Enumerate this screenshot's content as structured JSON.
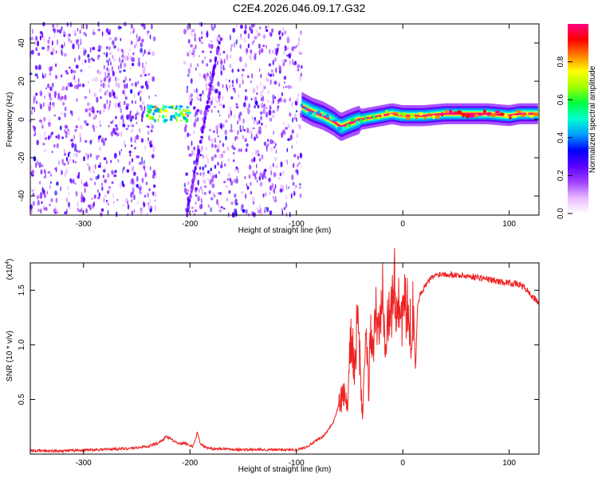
{
  "title": "C2E4.2026.046.09.17.G32",
  "chart_data": [
    {
      "type": "heatmap",
      "name": "spectrogram",
      "xlabel": "Height of straight line (km)",
      "ylabel": "Frequency (Hz)",
      "xlim": [
        -350,
        128
      ],
      "ylim": [
        -50,
        50
      ],
      "xticks": [
        -300,
        -200,
        -100,
        0,
        100
      ],
      "yticks": [
        -40,
        -20,
        0,
        20,
        40
      ],
      "colorbar": {
        "label": "Normalized spectral amplitude",
        "range": [
          0.0,
          1.0
        ],
        "ticks": [
          "0.0",
          "0.2",
          "0.4",
          "0.6",
          "0.8"
        ],
        "colors": [
          "#ffffff",
          "#e8b8ff",
          "#a040ff",
          "#5a00ff",
          "#0000ff",
          "#00a0ff",
          "#00ffd0",
          "#00ff40",
          "#a0ff00",
          "#ffff00",
          "#ff8000",
          "#ff0000",
          "#ff0080"
        ]
      },
      "regions": [
        {
          "label": "noise",
          "x": [
            -350,
            -232
          ],
          "freq": [
            -50,
            50
          ],
          "amplitude": 0.08
        },
        {
          "label": "noise",
          "x": [
            -205,
            -95
          ],
          "freq": [
            -50,
            50
          ],
          "amplitude": 0.08
        },
        {
          "label": "blob",
          "x": [
            -240,
            -200
          ],
          "freq": [
            -1,
            7
          ],
          "amplitude": 0.35
        },
        {
          "label": "sweep",
          "x": [
            -203,
            -172
          ],
          "freq": [
            -50,
            42
          ],
          "amplitude": 0.15
        },
        {
          "label": "signal",
          "x": [
            -95,
            128
          ],
          "freq": [
            -10,
            12
          ],
          "amplitude": 0.95
        }
      ],
      "ridge": {
        "x": [
          -95,
          -85,
          -75,
          -65,
          -58,
          -50,
          -40,
          -30,
          -20,
          -10,
          0,
          20,
          40,
          60,
          80,
          100,
          110,
          128
        ],
        "freq": [
          7,
          4,
          2,
          -1,
          -4,
          -2,
          0,
          1,
          2,
          3,
          2,
          2,
          3,
          3,
          3,
          2,
          3,
          3
        ],
        "amplitude": [
          0.4,
          0.45,
          0.5,
          0.5,
          0.45,
          0.55,
          0.6,
          0.65,
          0.7,
          0.75,
          0.8,
          0.9,
          0.95,
          0.95,
          0.95,
          0.9,
          0.85,
          0.9
        ]
      }
    },
    {
      "type": "line",
      "name": "snr",
      "xlabel": "Height of straight line (km)",
      "ylabel": "SNR (10 * v/v)",
      "scale_label": "(x10",
      "scale_exp": "4",
      "scale_close": ")",
      "xlim": [
        -350,
        128
      ],
      "ylim": [
        0,
        1.75
      ],
      "xticks": [
        -300,
        -200,
        -100,
        0,
        100
      ],
      "yticks": [
        0.5,
        1.0,
        1.5
      ],
      "ytick_labels": [
        "0.5",
        "1.0",
        "1.5"
      ],
      "color": "#ee2222",
      "series": [
        {
          "name": "SNR",
          "x": [
            -350,
            -320,
            -290,
            -260,
            -240,
            -230,
            -222,
            -215,
            -210,
            -205,
            -200,
            -197,
            -193,
            -190,
            -185,
            -180,
            -170,
            -150,
            -130,
            -110,
            -100,
            -95,
            -90,
            -85,
            -80,
            -75,
            -70,
            -65,
            -60,
            -55,
            -52,
            -50,
            -48,
            -45,
            -43,
            -40,
            -38,
            -35,
            -32,
            -30,
            -28,
            -25,
            -22,
            -20,
            -19,
            -18,
            -16,
            -14,
            -12,
            -10,
            -8,
            -6,
            -4,
            -2,
            0,
            4,
            8,
            10,
            12,
            14,
            16,
            18,
            20,
            24,
            28,
            32,
            36,
            40,
            50,
            60,
            70,
            80,
            90,
            100,
            110,
            115,
            120,
            125,
            128
          ],
          "y": [
            0.03,
            0.03,
            0.04,
            0.05,
            0.07,
            0.1,
            0.16,
            0.12,
            0.09,
            0.1,
            0.08,
            0.07,
            0.2,
            0.09,
            0.06,
            0.05,
            0.05,
            0.04,
            0.04,
            0.04,
            0.04,
            0.05,
            0.07,
            0.1,
            0.13,
            0.16,
            0.22,
            0.3,
            0.45,
            0.55,
            0.4,
            0.85,
            1.1,
            0.7,
            1.25,
            0.8,
            0.35,
            1.05,
            0.6,
            1.2,
            0.95,
            1.3,
            1.05,
            1.55,
            1.7,
            1.45,
            1.05,
            1.25,
            1.15,
            1.45,
            1.55,
            1.35,
            1.5,
            1.2,
            1.35,
            1.3,
            1.1,
            1.4,
            0.75,
            1.38,
            1.45,
            1.5,
            1.52,
            1.58,
            1.62,
            1.64,
            1.65,
            1.65,
            1.64,
            1.63,
            1.62,
            1.6,
            1.58,
            1.57,
            1.55,
            1.52,
            1.46,
            1.41,
            1.38
          ]
        }
      ]
    }
  ]
}
